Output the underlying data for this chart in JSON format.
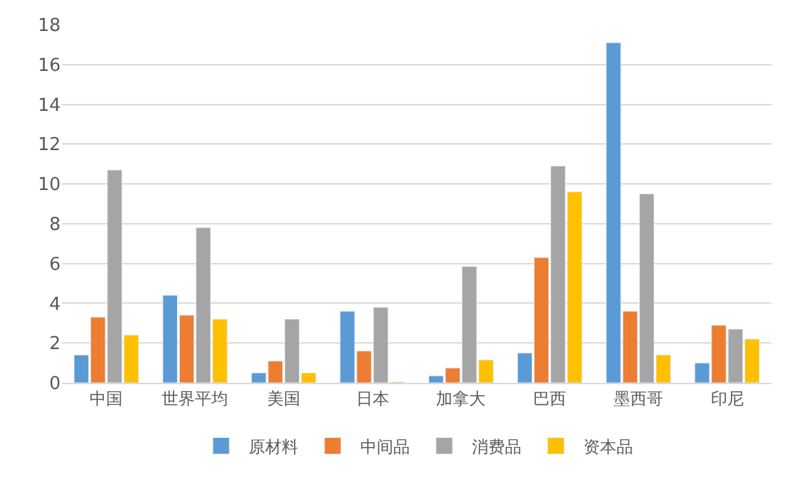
{
  "chart_data": {
    "type": "bar",
    "categories": [
      "中国",
      "世界平均",
      "美国",
      "日本",
      "加拿大",
      "巴西",
      "墨西哥",
      "印尼"
    ],
    "series": [
      {
        "name": "原材料",
        "color": "#5b9bd5",
        "values": [
          1.4,
          4.4,
          0.5,
          3.6,
          0.35,
          1.5,
          17.1,
          1.0
        ]
      },
      {
        "name": "中间品",
        "color": "#ed7d31",
        "values": [
          3.3,
          3.4,
          1.1,
          1.6,
          0.75,
          6.3,
          3.6,
          2.9
        ]
      },
      {
        "name": "消费品",
        "color": "#a5a5a5",
        "values": [
          10.7,
          7.8,
          3.2,
          3.8,
          5.85,
          10.9,
          9.5,
          2.7
        ]
      },
      {
        "name": "资本品",
        "color": "#ffc000",
        "values": [
          2.4,
          3.2,
          0.5,
          0.05,
          1.15,
          9.6,
          1.4,
          2.2
        ]
      }
    ],
    "ylim": [
      0,
      18
    ],
    "yticks": [
      0,
      2,
      4,
      6,
      8,
      10,
      12,
      14,
      16,
      18
    ],
    "grid": "y",
    "legend": "bottom"
  }
}
